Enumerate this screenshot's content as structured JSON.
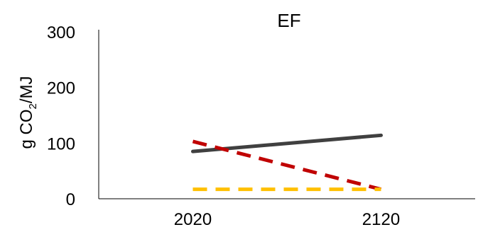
{
  "chart_data": {
    "type": "line",
    "title": "EF",
    "ylabel": {
      "prefix": "g CO",
      "subscript": "2",
      "suffix": "/MJ"
    },
    "xlabel": "",
    "categories": [
      "2020",
      "2120"
    ],
    "yticks": [
      "0",
      "100",
      "200",
      "300"
    ],
    "ylim": [
      0,
      300
    ],
    "grid": false,
    "legend": "none",
    "series": [
      {
        "values": [
          85,
          114
        ],
        "color": "#404040",
        "style": "solid"
      },
      {
        "values": [
          103,
          17
        ],
        "color": "#c00000",
        "style": "dashed"
      },
      {
        "values": [
          17,
          17
        ],
        "color": "#ffc000",
        "style": "dashed"
      }
    ]
  }
}
